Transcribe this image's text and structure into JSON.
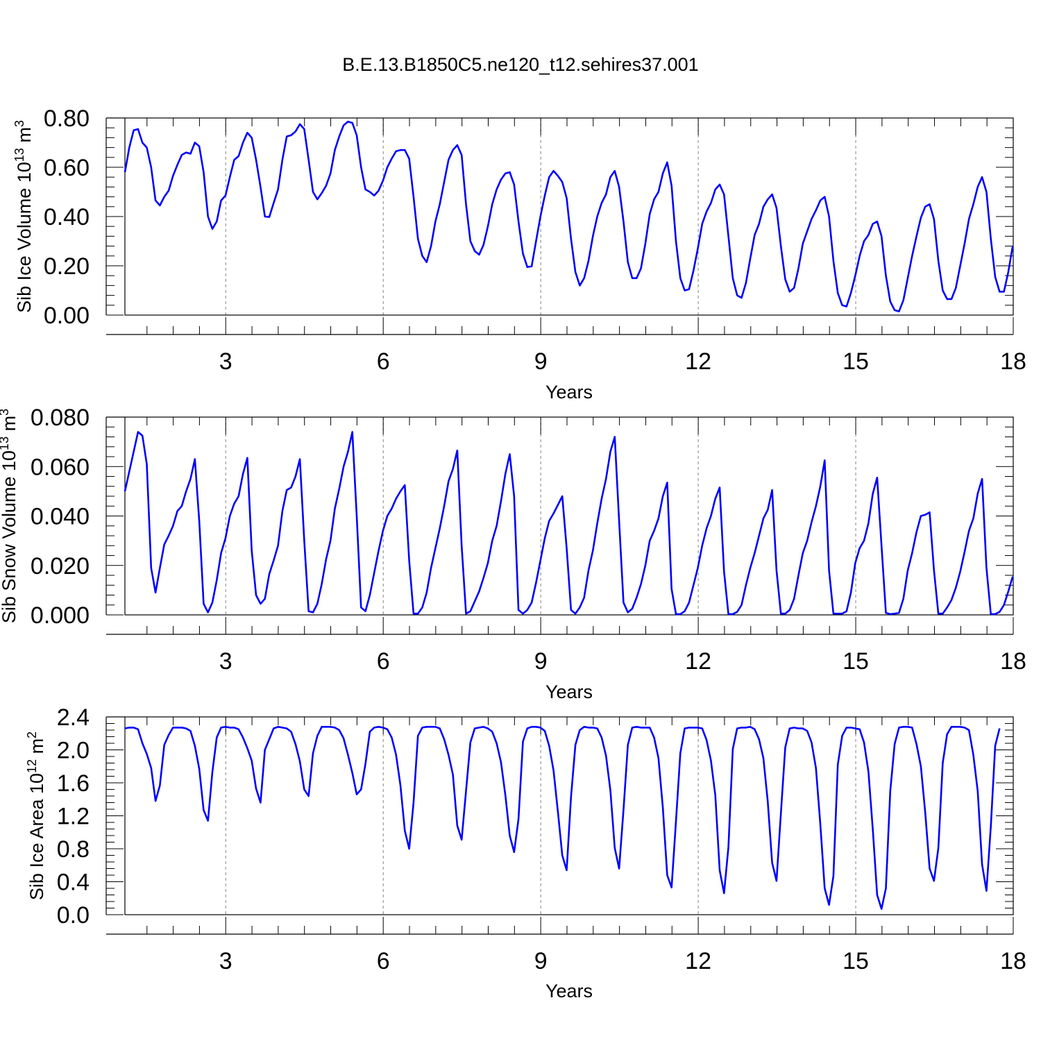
{
  "title": "B.E.13.B1850C5.ne120_t12.sehires37.001",
  "colors": {
    "series": "#0000ff",
    "axis": "#000000",
    "grid": "#808080"
  },
  "chart_data": [
    {
      "type": "line",
      "title": "B.E.13.B1850C5.ne120_t12.sehires37.001",
      "xlabel": "Years",
      "ylabel_main": "Sib Ice Volume 10",
      "ylabel_exp": "13",
      "ylabel_unit": "m",
      "ylabel_unit_exp": "3",
      "xlim": [
        1.08,
        18.0
      ],
      "ylim": [
        0.0,
        0.8
      ],
      "x_ticks": [
        3,
        6,
        9,
        12,
        15,
        18
      ],
      "x_tick_labels": [
        "3",
        "6",
        "9",
        "12",
        "15",
        "18"
      ],
      "y_ticks": [
        0.0,
        0.2,
        0.4,
        0.6,
        0.8
      ],
      "y_tick_labels": [
        "0.00",
        "0.20",
        "0.40",
        "0.60",
        "0.80"
      ],
      "y_minor_step": 0.04,
      "grid": "vertical dashed at major x ticks",
      "series": [
        {
          "name": "Sib Ice Volume",
          "start_year": 1.08,
          "step_years": 0.0833,
          "values": [
            0.58,
            0.68,
            0.75,
            0.755,
            0.7,
            0.68,
            0.6,
            0.465,
            0.445,
            0.48,
            0.505,
            0.565,
            0.61,
            0.65,
            0.66,
            0.655,
            0.7,
            0.685,
            0.58,
            0.4,
            0.35,
            0.38,
            0.465,
            0.485,
            0.56,
            0.63,
            0.645,
            0.7,
            0.74,
            0.72,
            0.63,
            0.52,
            0.4,
            0.398,
            0.455,
            0.51,
            0.63,
            0.725,
            0.73,
            0.745,
            0.775,
            0.755,
            0.63,
            0.5,
            0.47,
            0.495,
            0.525,
            0.575,
            0.67,
            0.725,
            0.77,
            0.785,
            0.78,
            0.73,
            0.6,
            0.51,
            0.5,
            0.485,
            0.505,
            0.545,
            0.6,
            0.635,
            0.665,
            0.67,
            0.67,
            0.635,
            0.48,
            0.31,
            0.24,
            0.215,
            0.28,
            0.38,
            0.45,
            0.54,
            0.63,
            0.67,
            0.69,
            0.65,
            0.45,
            0.3,
            0.26,
            0.245,
            0.285,
            0.36,
            0.45,
            0.51,
            0.55,
            0.575,
            0.58,
            0.53,
            0.38,
            0.25,
            0.195,
            0.198,
            0.3,
            0.4,
            0.485,
            0.56,
            0.585,
            0.565,
            0.54,
            0.475,
            0.31,
            0.175,
            0.12,
            0.15,
            0.22,
            0.32,
            0.4,
            0.455,
            0.49,
            0.56,
            0.585,
            0.52,
            0.38,
            0.215,
            0.15,
            0.15,
            0.19,
            0.29,
            0.41,
            0.47,
            0.5,
            0.575,
            0.62,
            0.525,
            0.3,
            0.15,
            0.1,
            0.105,
            0.18,
            0.27,
            0.37,
            0.42,
            0.455,
            0.51,
            0.53,
            0.49,
            0.32,
            0.15,
            0.08,
            0.07,
            0.13,
            0.23,
            0.325,
            0.37,
            0.44,
            0.47,
            0.49,
            0.435,
            0.28,
            0.145,
            0.095,
            0.11,
            0.19,
            0.29,
            0.34,
            0.39,
            0.425,
            0.465,
            0.48,
            0.4,
            0.22,
            0.09,
            0.04,
            0.035,
            0.09,
            0.16,
            0.24,
            0.3,
            0.325,
            0.37,
            0.38,
            0.32,
            0.16,
            0.055,
            0.02,
            0.015,
            0.06,
            0.15,
            0.24,
            0.32,
            0.395,
            0.44,
            0.45,
            0.39,
            0.22,
            0.1,
            0.065,
            0.065,
            0.11,
            0.2,
            0.29,
            0.39,
            0.45,
            0.52,
            0.56,
            0.5,
            0.31,
            0.155,
            0.095,
            0.095,
            0.175,
            0.28
          ]
        }
      ]
    },
    {
      "type": "line",
      "xlabel": "Years",
      "ylabel_main": "Sib Snow Volume 10",
      "ylabel_exp": "13",
      "ylabel_unit": "m",
      "ylabel_unit_exp": "3",
      "xlim": [
        1.08,
        18.0
      ],
      "ylim": [
        0.0,
        0.08
      ],
      "x_ticks": [
        3,
        6,
        9,
        12,
        15,
        18
      ],
      "x_tick_labels": [
        "3",
        "6",
        "9",
        "12",
        "15",
        "18"
      ],
      "y_ticks": [
        0.0,
        0.02,
        0.04,
        0.06,
        0.08
      ],
      "y_tick_labels": [
        "0.000",
        "0.020",
        "0.040",
        "0.060",
        "0.080"
      ],
      "y_minor_step": 0.004,
      "grid": "vertical dashed at major x ticks",
      "series": [
        {
          "name": "Sib Snow Volume",
          "start_year": 1.08,
          "step_years": 0.0833,
          "values": [
            0.05,
            0.058,
            0.066,
            0.074,
            0.0725,
            0.061,
            0.019,
            0.009,
            0.019,
            0.0285,
            0.032,
            0.036,
            0.042,
            0.044,
            0.05,
            0.055,
            0.063,
            0.038,
            0.0045,
            0.001,
            0.005,
            0.014,
            0.025,
            0.031,
            0.04,
            0.045,
            0.048,
            0.057,
            0.0635,
            0.026,
            0.008,
            0.0045,
            0.0065,
            0.0165,
            0.022,
            0.028,
            0.042,
            0.0505,
            0.0515,
            0.056,
            0.063,
            0.03,
            0.0015,
            0.001,
            0.0045,
            0.0125,
            0.0225,
            0.03,
            0.043,
            0.051,
            0.06,
            0.066,
            0.074,
            0.04,
            0.003,
            0.0015,
            0.008,
            0.017,
            0.026,
            0.034,
            0.04,
            0.043,
            0.047,
            0.05,
            0.0525,
            0.022,
            0.0005,
            0.0005,
            0.003,
            0.009,
            0.019,
            0.027,
            0.035,
            0.044,
            0.054,
            0.059,
            0.0665,
            0.028,
            0.0005,
            0.0015,
            0.0055,
            0.0095,
            0.015,
            0.021,
            0.03,
            0.036,
            0.046,
            0.057,
            0.065,
            0.048,
            0.002,
            0.0005,
            0.002,
            0.005,
            0.013,
            0.022,
            0.031,
            0.038,
            0.041,
            0.0445,
            0.048,
            0.027,
            0.002,
            0.0005,
            0.003,
            0.007,
            0.018,
            0.026,
            0.037,
            0.047,
            0.055,
            0.066,
            0.072,
            0.038,
            0.005,
            0.001,
            0.0025,
            0.007,
            0.0125,
            0.02,
            0.03,
            0.034,
            0.039,
            0.048,
            0.0535,
            0.0105,
            0.0003,
            0.0003,
            0.0015,
            0.005,
            0.012,
            0.019,
            0.028,
            0.035,
            0.04,
            0.047,
            0.0515,
            0.0175,
            0.0003,
            0.0003,
            0.0012,
            0.004,
            0.012,
            0.019,
            0.025,
            0.032,
            0.039,
            0.0425,
            0.0505,
            0.018,
            0.0005,
            0.0005,
            0.002,
            0.0065,
            0.016,
            0.025,
            0.03,
            0.0375,
            0.044,
            0.052,
            0.0625,
            0.018,
            0.0005,
            0.0005,
            0.0005,
            0.0015,
            0.009,
            0.021,
            0.027,
            0.03,
            0.037,
            0.049,
            0.0555,
            0.028,
            0.0008,
            0.0003,
            0.0005,
            0.0008,
            0.0065,
            0.018,
            0.025,
            0.0335,
            0.04,
            0.0405,
            0.0415,
            0.018,
            0.0005,
            0.0005,
            0.003,
            0.006,
            0.011,
            0.0175,
            0.0255,
            0.034,
            0.039,
            0.049,
            0.055,
            0.019,
            0.0003,
            0.0003,
            0.0012,
            0.004,
            0.0095,
            0.0155
          ]
        }
      ]
    },
    {
      "type": "line",
      "xlabel": "Years",
      "ylabel_main": "Sib Ice Area 10",
      "ylabel_exp": "12",
      "ylabel_unit": "m",
      "ylabel_unit_exp": "2",
      "xlim": [
        1.08,
        18.0
      ],
      "ylim": [
        0.0,
        2.4
      ],
      "x_ticks": [
        3,
        6,
        9,
        12,
        15,
        18
      ],
      "x_tick_labels": [
        "3",
        "6",
        "9",
        "12",
        "15",
        "18"
      ],
      "y_ticks": [
        0.0,
        0.4,
        0.8,
        1.2,
        1.6,
        2.0,
        2.4
      ],
      "y_tick_labels": [
        "0.0",
        "0.4",
        "0.8",
        "1.2",
        "1.6",
        "2.0",
        "2.4"
      ],
      "y_minor_step": 0.08,
      "grid": "vertical dashed at major x ticks",
      "series": [
        {
          "name": "Sib Ice Area",
          "start_year": 1.08,
          "step_years": 0.0833,
          "values": [
            2.26,
            2.27,
            2.27,
            2.25,
            2.08,
            1.95,
            1.78,
            1.38,
            1.57,
            2.06,
            2.18,
            2.27,
            2.27,
            2.27,
            2.26,
            2.23,
            2.05,
            1.77,
            1.27,
            1.14,
            1.73,
            2.15,
            2.27,
            2.28,
            2.27,
            2.27,
            2.25,
            2.15,
            2.02,
            1.87,
            1.53,
            1.36,
            2.0,
            2.13,
            2.26,
            2.28,
            2.27,
            2.26,
            2.22,
            2.07,
            1.86,
            1.52,
            1.44,
            1.96,
            2.17,
            2.28,
            2.28,
            2.28,
            2.27,
            2.24,
            2.14,
            1.94,
            1.72,
            1.46,
            1.52,
            1.83,
            2.22,
            2.27,
            2.28,
            2.27,
            2.25,
            2.15,
            1.94,
            1.57,
            1.02,
            0.8,
            1.36,
            2.17,
            2.27,
            2.28,
            2.28,
            2.28,
            2.26,
            2.13,
            1.94,
            1.7,
            1.08,
            0.91,
            1.5,
            2.09,
            2.26,
            2.27,
            2.28,
            2.26,
            2.22,
            2.08,
            1.85,
            1.45,
            0.96,
            0.76,
            1.16,
            2.1,
            2.26,
            2.28,
            2.28,
            2.27,
            2.23,
            2.05,
            1.75,
            1.25,
            0.72,
            0.54,
            1.43,
            2.06,
            2.24,
            2.28,
            2.27,
            2.27,
            2.26,
            2.15,
            1.93,
            1.51,
            0.81,
            0.56,
            1.27,
            2.06,
            2.27,
            2.28,
            2.27,
            2.27,
            2.27,
            2.15,
            1.9,
            1.3,
            0.48,
            0.33,
            1.13,
            1.96,
            2.26,
            2.27,
            2.27,
            2.27,
            2.26,
            2.12,
            1.87,
            1.45,
            0.54,
            0.26,
            0.82,
            2.01,
            2.26,
            2.27,
            2.27,
            2.28,
            2.25,
            2.13,
            1.9,
            1.37,
            0.63,
            0.41,
            1.23,
            2.03,
            2.26,
            2.27,
            2.26,
            2.26,
            2.23,
            2.09,
            1.78,
            1.1,
            0.32,
            0.12,
            0.47,
            1.82,
            2.17,
            2.27,
            2.27,
            2.26,
            2.25,
            2.09,
            1.74,
            1.04,
            0.24,
            0.07,
            0.32,
            1.5,
            2.07,
            2.27,
            2.28,
            2.28,
            2.27,
            2.07,
            1.8,
            1.24,
            0.56,
            0.41,
            0.81,
            1.84,
            2.19,
            2.28,
            2.28,
            2.28,
            2.27,
            2.24,
            1.94,
            1.5,
            0.61,
            0.29,
            1.07,
            2.05,
            2.26
          ]
        }
      ]
    }
  ]
}
